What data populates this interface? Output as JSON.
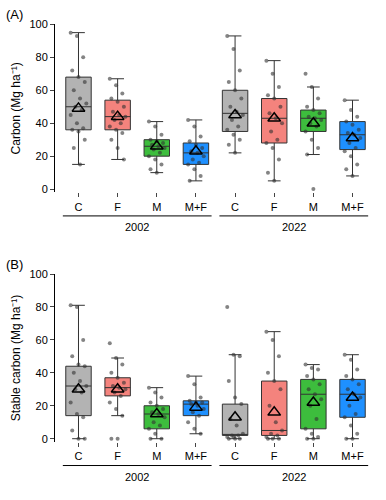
{
  "chart_data": [
    {
      "type": "box",
      "title": "(A)",
      "y_label": "Carbon (Mg ha⁻¹)",
      "ylim": [
        -2,
        100
      ],
      "yticks": [
        0,
        20,
        40,
        60,
        80,
        100
      ],
      "categories": [
        "C",
        "F",
        "M",
        "M+F",
        "C",
        "F",
        "M",
        "M+F"
      ],
      "x_groups": [
        "2002",
        "2022"
      ],
      "boxes": [
        {
          "color": "#b3b3b3",
          "lowerfence": 15,
          "q1": 36,
          "median": 50,
          "q3": 68,
          "upperfence": 95,
          "mean": 49,
          "points": [
            95,
            93,
            80,
            72,
            68,
            65,
            60,
            55,
            52,
            50,
            48,
            45,
            40,
            37,
            36,
            35,
            30,
            25,
            15
          ]
        },
        {
          "color": "#f4837d",
          "lowerfence": 18,
          "q1": 36,
          "median": 44,
          "q3": 54,
          "upperfence": 67,
          "mean": 44,
          "points": [
            67,
            63,
            58,
            55,
            53,
            50,
            47,
            45,
            44,
            42,
            40,
            38,
            36,
            34,
            30,
            25,
            18
          ]
        },
        {
          "color": "#3dbd3d",
          "lowerfence": 10,
          "q1": 20,
          "median": 26,
          "q3": 30,
          "upperfence": 41,
          "mean": 26,
          "points": [
            41,
            38,
            33,
            30,
            29,
            28,
            27,
            26,
            25,
            24,
            22,
            20,
            18,
            15,
            12,
            10
          ]
        },
        {
          "color": "#1e90ff",
          "lowerfence": 5,
          "q1": 15,
          "median": 22,
          "q3": 28,
          "upperfence": 42,
          "mean": 23,
          "points": [
            42,
            38,
            32,
            29,
            27,
            25,
            23,
            22,
            20,
            18,
            16,
            15,
            12,
            8,
            5
          ]
        },
        {
          "color": "#b3b3b3",
          "lowerfence": 22,
          "q1": 35,
          "median": 46,
          "q3": 60,
          "upperfence": 93,
          "mean": 45,
          "points": [
            93,
            85,
            72,
            65,
            60,
            55,
            50,
            47,
            45,
            42,
            38,
            36,
            33,
            30,
            27,
            22
          ]
        },
        {
          "color": "#f4837d",
          "lowerfence": 5,
          "q1": 28,
          "median": 43,
          "q3": 55,
          "upperfence": 78,
          "mean": 43,
          "points": [
            78,
            70,
            62,
            57,
            55,
            50,
            46,
            43,
            40,
            35,
            30,
            28,
            25,
            18,
            10,
            5
          ]
        },
        {
          "color": "#3dbd3d",
          "lowerfence": 21,
          "q1": 35,
          "median": 43,
          "q3": 48,
          "upperfence": 62,
          "mean": 40,
          "points": [
            70,
            62,
            55,
            50,
            48,
            46,
            44,
            43,
            42,
            40,
            38,
            35,
            30,
            25,
            21,
            0
          ]
        },
        {
          "color": "#1e90ff",
          "lowerfence": 8,
          "q1": 24,
          "median": 33,
          "q3": 41,
          "upperfence": 54,
          "mean": 31,
          "points": [
            54,
            48,
            44,
            41,
            39,
            36,
            34,
            33,
            31,
            28,
            25,
            23,
            20,
            15,
            12,
            8
          ]
        }
      ]
    },
    {
      "type": "box",
      "title": "(B)",
      "y_label": "Stable carbon (Mg ha⁻¹)",
      "ylim": [
        -2,
        100
      ],
      "yticks": [
        0,
        20,
        40,
        60,
        80,
        100
      ],
      "categories": [
        "C",
        "F",
        "M",
        "M+F",
        "C",
        "F",
        "M",
        "M+F"
      ],
      "x_groups": [
        "2002",
        "2022"
      ],
      "boxes": [
        {
          "color": "#b3b3b3",
          "lowerfence": 0,
          "q1": 14,
          "median": 32,
          "q3": 44,
          "upperfence": 81,
          "mean": 30,
          "points": [
            81,
            80,
            60,
            50,
            45,
            44,
            40,
            35,
            32,
            30,
            28,
            22,
            15,
            13,
            5,
            0,
            0
          ]
        },
        {
          "color": "#f4837d",
          "lowerfence": 14,
          "q1": 26,
          "median": 31,
          "q3": 37,
          "upperfence": 49,
          "mean": 30,
          "points": [
            58,
            49,
            45,
            40,
            37,
            34,
            32,
            31,
            30,
            28,
            26,
            22,
            18,
            14,
            0,
            0
          ]
        },
        {
          "color": "#3dbd3d",
          "lowerfence": 0,
          "q1": 6,
          "median": 15,
          "q3": 20,
          "upperfence": 31,
          "mean": 15,
          "points": [
            31,
            28,
            25,
            22,
            20,
            18,
            16,
            15,
            13,
            10,
            8,
            6,
            3,
            0,
            0
          ]
        },
        {
          "color": "#1e90ff",
          "lowerfence": 3,
          "q1": 14,
          "median": 21,
          "q3": 23,
          "upperfence": 38,
          "mean": 19,
          "points": [
            38,
            33,
            25,
            23,
            22,
            22,
            21,
            20,
            18,
            16,
            14,
            10,
            6,
            3
          ]
        },
        {
          "color": "#b3b3b3",
          "lowerfence": 0,
          "q1": 2,
          "median": 2,
          "q3": 21,
          "upperfence": 51,
          "mean": 13,
          "points": [
            80,
            51,
            50,
            35,
            25,
            21,
            12,
            8,
            3,
            2,
            2,
            1,
            1,
            0,
            0,
            0
          ]
        },
        {
          "color": "#f4837d",
          "lowerfence": 0,
          "q1": 2,
          "median": 5,
          "q3": 35,
          "upperfence": 65,
          "mean": 16,
          "points": [
            65,
            60,
            50,
            40,
            35,
            30,
            20,
            10,
            5,
            3,
            2,
            1,
            0,
            0,
            0
          ]
        },
        {
          "color": "#3dbd3d",
          "lowerfence": 0,
          "q1": 6,
          "median": 27,
          "q3": 36,
          "upperfence": 45,
          "mean": 22,
          "points": [
            45,
            43,
            42,
            38,
            36,
            33,
            30,
            27,
            24,
            20,
            12,
            6,
            3,
            1,
            0,
            0
          ]
        },
        {
          "color": "#1e90ff",
          "lowerfence": 0,
          "q1": 13,
          "median": 27,
          "q3": 36,
          "upperfence": 51,
          "mean": 25,
          "points": [
            51,
            48,
            42,
            38,
            36,
            33,
            30,
            27,
            25,
            20,
            15,
            13,
            8,
            3,
            0,
            0
          ]
        }
      ]
    }
  ]
}
